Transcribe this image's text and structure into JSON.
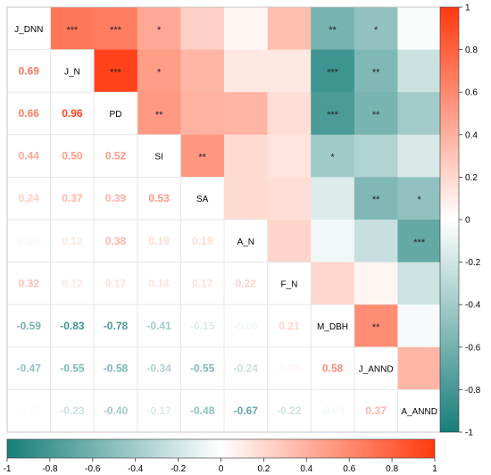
{
  "chart_data": {
    "type": "heatmap",
    "variables": [
      "J_DNN",
      "J_N",
      "PD",
      "SI",
      "SA",
      "A_N",
      "F_N",
      "M_DBH",
      "J_ANND",
      "A_ANND"
    ],
    "lower_triangle_labels": [
      [
        "0.69"
      ],
      [
        "0.66",
        "0.96"
      ],
      [
        "0.44",
        "0.50",
        "0.52"
      ],
      [
        "0.24",
        "0.37",
        "0.39",
        "0.53"
      ],
      [
        "0.05",
        "0.12",
        "0.38",
        "0.19",
        "0.19"
      ],
      [
        "0.32",
        "0.12",
        "0.17",
        "0.14",
        "0.17",
        "0.22"
      ],
      [
        "-0.59",
        "-0.83",
        "-0.78",
        "-0.41",
        "-0.15",
        "-0.06",
        "0.21"
      ],
      [
        "-0.47",
        "-0.55",
        "-0.58",
        "-0.34",
        "-0.55",
        "-0.24",
        "0.05",
        "0.58"
      ],
      [
        "-0.02",
        "-0.23",
        "-0.40",
        "-0.17",
        "-0.48",
        "-0.67",
        "-0.22",
        "-0.04",
        "0.37"
      ]
    ],
    "significance_stars": [
      [
        0,
        1,
        "***"
      ],
      [
        0,
        2,
        "***"
      ],
      [
        0,
        3,
        "*"
      ],
      [
        0,
        7,
        "**"
      ],
      [
        0,
        8,
        "*"
      ],
      [
        1,
        2,
        "***"
      ],
      [
        1,
        3,
        "*"
      ],
      [
        1,
        7,
        "***"
      ],
      [
        1,
        8,
        "**"
      ],
      [
        2,
        3,
        "**"
      ],
      [
        2,
        7,
        "***"
      ],
      [
        2,
        8,
        "**"
      ],
      [
        3,
        4,
        "**"
      ],
      [
        3,
        7,
        "*"
      ],
      [
        4,
        8,
        "**"
      ],
      [
        4,
        9,
        "*"
      ],
      [
        5,
        9,
        "***"
      ],
      [
        7,
        8,
        "**"
      ]
    ],
    "color_scale": {
      "min": -1,
      "max": 1,
      "low": "#177E7A",
      "mid": "#FFFFFF",
      "high": "#FF3A0F"
    },
    "colorbar_ticks": [
      "-1",
      "-0.8",
      "-0.6",
      "-0.4",
      "-0.2",
      "0",
      "0.2",
      "0.4",
      "0.6",
      "0.8",
      "1"
    ],
    "colorbar_values": [
      -1,
      -0.8,
      -0.6,
      -0.4,
      -0.2,
      0,
      0.2,
      0.4,
      0.6,
      0.8,
      1
    ]
  }
}
